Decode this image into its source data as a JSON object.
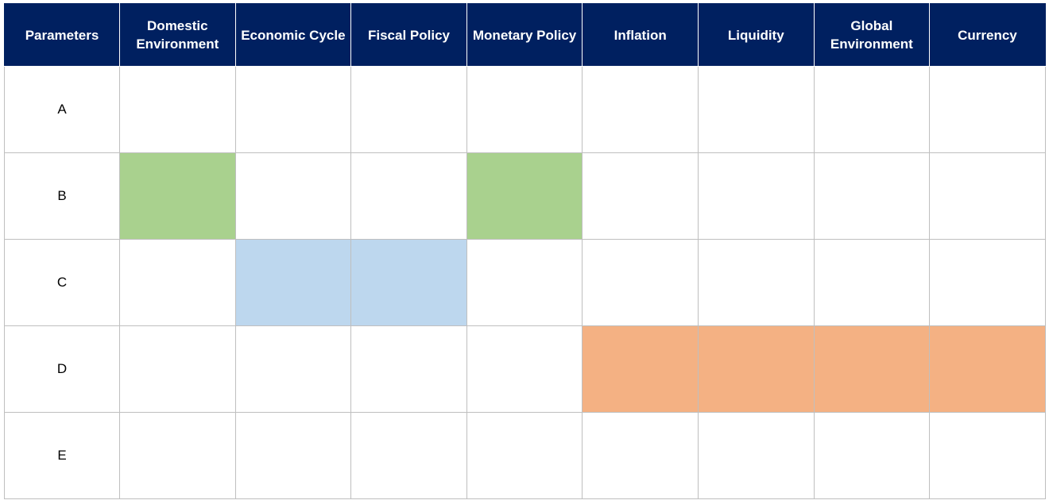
{
  "table": {
    "headers": [
      "Parameters",
      "Domestic Environment",
      "Economic Cycle",
      "Fiscal Policy",
      "Monetary Policy",
      "Inflation",
      "Liquidity",
      "Global Environment",
      "Currency"
    ],
    "rows": [
      {
        "label": "A",
        "fills": [
          "",
          "",
          "",
          "",
          "",
          "",
          "",
          ""
        ]
      },
      {
        "label": "B",
        "fills": [
          "#a9d18e",
          "",
          "",
          "#a9d18e",
          "",
          "",
          "",
          ""
        ]
      },
      {
        "label": "C",
        "fills": [
          "",
          "#bdd7ee",
          "#bdd7ee",
          "",
          "",
          "",
          "",
          ""
        ]
      },
      {
        "label": "D",
        "fills": [
          "",
          "",
          "",
          "",
          "#f4b183",
          "#f4b183",
          "#f4b183",
          "#f4b183"
        ]
      },
      {
        "label": "E",
        "fills": [
          "",
          "",
          "",
          "",
          "",
          "",
          "",
          ""
        ]
      }
    ]
  },
  "colors": {
    "header_bg": "#002060",
    "header_text": "#ffffff",
    "green": "#a9d18e",
    "blue": "#bdd7ee",
    "orange": "#f4b183",
    "grid_line": "#bfbfbf"
  }
}
